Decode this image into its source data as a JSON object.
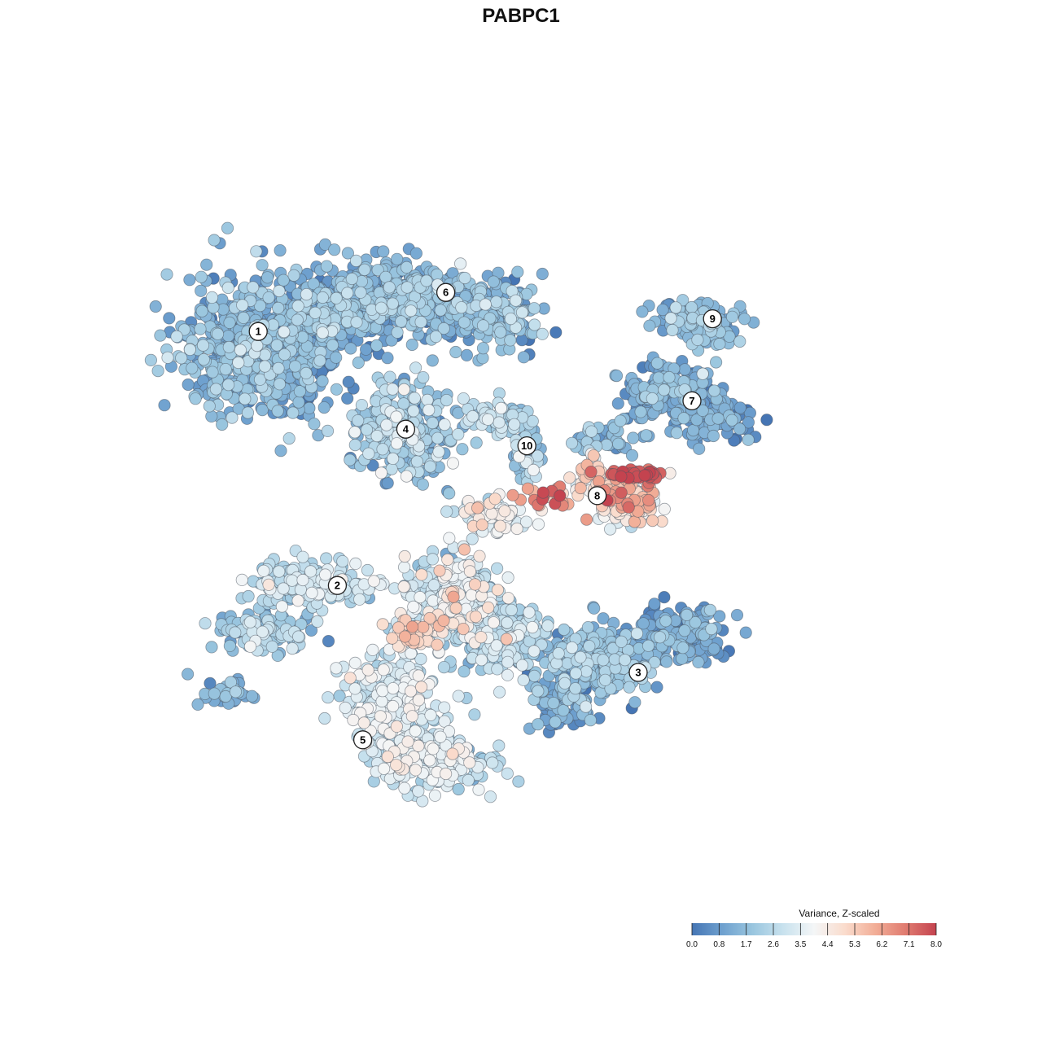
{
  "chart_data": {
    "type": "scatter",
    "title": "PABPC1",
    "xlabel": "",
    "ylabel": "",
    "grid": false,
    "axes_visible": false,
    "legend": {
      "title": "Variance, Z-scaled",
      "placement": "bottom-right",
      "ticks": [
        "0.0",
        "0.8",
        "1.7",
        "2.6",
        "3.5",
        "4.4",
        "5.3",
        "6.2",
        "7.1",
        "8.0"
      ],
      "range": [
        0,
        8
      ]
    },
    "color_scale": {
      "stops": [
        "#4575b4",
        "#6fa1cf",
        "#9ac6df",
        "#c9e2ee",
        "#f4f6f7",
        "#fadccd",
        "#f2ae97",
        "#e07b70",
        "#c4434f"
      ]
    },
    "xlim": [
      -40,
      40
    ],
    "ylim": [
      -40,
      40
    ],
    "clusters": [
      {
        "label": "1",
        "x": -26.9,
        "y": 19.4
      },
      {
        "label": "2",
        "x": -18.8,
        "y": -6.6
      },
      {
        "label": "3",
        "x": 12.0,
        "y": -15.5
      },
      {
        "label": "4",
        "x": -11.8,
        "y": 9.4
      },
      {
        "label": "5",
        "x": -16.2,
        "y": -22.4
      },
      {
        "label": "6",
        "x": -7.7,
        "y": 23.4
      },
      {
        "label": "7",
        "x": 17.5,
        "y": 12.3
      },
      {
        "label": "8",
        "x": 7.8,
        "y": 2.6
      },
      {
        "label": "9",
        "x": 19.6,
        "y": 20.7
      },
      {
        "label": "10",
        "x": 0.6,
        "y": 7.7
      }
    ],
    "regions": [
      {
        "cluster": "1",
        "cx": -26.5,
        "cy": 18.0,
        "sx": 6.5,
        "sy": 6.0,
        "n": 650,
        "value": 1.5,
        "value_sd": 0.7
      },
      {
        "cluster": "1",
        "cx": -19.0,
        "cy": 21.5,
        "sx": 5.0,
        "sy": 3.5,
        "n": 260,
        "value": 1.4,
        "value_sd": 0.7
      },
      {
        "cluster": "6",
        "cx": -11.5,
        "cy": 22.5,
        "sx": 7.0,
        "sy": 3.2,
        "n": 420,
        "value": 1.5,
        "value_sd": 0.7
      },
      {
        "cluster": "6",
        "cx": -2.5,
        "cy": 21.0,
        "sx": 3.5,
        "sy": 2.8,
        "n": 130,
        "value": 1.6,
        "value_sd": 0.8
      },
      {
        "cluster": "4",
        "cx": -12.0,
        "cy": 9.0,
        "sx": 3.8,
        "sy": 3.8,
        "n": 340,
        "value": 2.0,
        "value_sd": 0.8
      },
      {
        "cluster": "10",
        "cx": -2.5,
        "cy": 10.5,
        "sx": 3.0,
        "sy": 1.5,
        "n": 60,
        "value": 2.3,
        "value_sd": 0.8
      },
      {
        "cluster": "10",
        "cx": 0.5,
        "cy": 7.5,
        "sx": 1.3,
        "sy": 2.2,
        "n": 45,
        "value": 2.2,
        "value_sd": 0.8
      },
      {
        "cluster": "7",
        "cx": 15.0,
        "cy": 13.0,
        "sx": 4.0,
        "sy": 2.4,
        "n": 190,
        "value": 1.2,
        "value_sd": 0.6
      },
      {
        "cluster": "7",
        "cx": 20.0,
        "cy": 10.5,
        "sx": 3.5,
        "sy": 1.8,
        "n": 90,
        "value": 1.0,
        "value_sd": 0.5
      },
      {
        "cluster": "7",
        "cx": 8.5,
        "cy": 8.5,
        "sx": 3.0,
        "sy": 1.2,
        "n": 40,
        "value": 1.5,
        "value_sd": 0.6
      },
      {
        "cluster": "9",
        "cx": 18.5,
        "cy": 20.5,
        "sx": 3.5,
        "sy": 1.8,
        "n": 130,
        "value": 1.6,
        "value_sd": 0.6
      },
      {
        "cluster": "8",
        "cx": 10.5,
        "cy": 2.8,
        "sx": 3.0,
        "sy": 1.5,
        "n": 80,
        "value": 5.5,
        "value_sd": 1.0
      },
      {
        "cluster": "8",
        "cx": 7.0,
        "cy": 4.5,
        "sx": 1.2,
        "sy": 1.5,
        "n": 35,
        "value": 5.0,
        "value_sd": 0.9
      },
      {
        "cluster": "8",
        "cx": 11.0,
        "cy": 1.0,
        "sx": 2.3,
        "sy": 1.1,
        "n": 60,
        "value": 4.5,
        "value_sd": 0.8
      },
      {
        "cluster": "8",
        "cx": 12.0,
        "cy": 4.8,
        "sx": 2.4,
        "sy": 0.4,
        "n": 40,
        "value": 7.7,
        "value_sd": 0.3
      },
      {
        "cluster": "8",
        "cx": 2.5,
        "cy": 2.5,
        "sx": 2.0,
        "sy": 0.8,
        "n": 25,
        "value": 6.8,
        "value_sd": 0.7
      },
      {
        "cluster": "8",
        "cx": -3.0,
        "cy": 0.5,
        "sx": 3.0,
        "sy": 1.2,
        "n": 90,
        "value": 3.7,
        "value_sd": 0.7
      },
      {
        "cluster": "2",
        "cx": -22.0,
        "cy": -6.5,
        "sx": 4.8,
        "sy": 1.8,
        "n": 180,
        "value": 2.8,
        "value_sd": 0.7
      },
      {
        "cluster": "2",
        "cx": -26.5,
        "cy": -11.5,
        "sx": 3.5,
        "sy": 1.7,
        "n": 110,
        "value": 2.3,
        "value_sd": 0.8
      },
      {
        "cluster": "2",
        "cx": -29.5,
        "cy": -17.5,
        "sx": 2.5,
        "sy": 1.2,
        "n": 35,
        "value": 1.3,
        "value_sd": 0.6
      },
      {
        "cluster": "5",
        "cx": -7.0,
        "cy": -8.0,
        "sx": 4.0,
        "sy": 3.5,
        "n": 330,
        "value": 3.0,
        "value_sd": 1.0
      },
      {
        "cluster": "5",
        "cx": -1.5,
        "cy": -12.0,
        "sx": 3.5,
        "sy": 3.0,
        "n": 250,
        "value": 2.2,
        "value_sd": 0.8
      },
      {
        "cluster": "5",
        "cx": -13.5,
        "cy": -18.5,
        "sx": 4.0,
        "sy": 3.5,
        "n": 300,
        "value": 3.0,
        "value_sd": 0.7
      },
      {
        "cluster": "5",
        "cx": -9.5,
        "cy": -24.5,
        "sx": 5.0,
        "sy": 2.3,
        "n": 260,
        "value": 3.1,
        "value_sd": 0.7
      },
      {
        "cluster": "5",
        "cx": -11.0,
        "cy": -11.5,
        "sx": 2.0,
        "sy": 1.5,
        "n": 50,
        "value": 4.9,
        "value_sd": 0.4
      },
      {
        "cluster": "3",
        "cx": 8.0,
        "cy": -14.5,
        "sx": 4.5,
        "sy": 3.0,
        "n": 280,
        "value": 1.6,
        "value_sd": 0.7
      },
      {
        "cluster": "3",
        "cx": 16.5,
        "cy": -11.5,
        "sx": 3.5,
        "sy": 2.2,
        "n": 190,
        "value": 1.0,
        "value_sd": 0.5
      },
      {
        "cluster": "3",
        "cx": 4.5,
        "cy": -19.0,
        "sx": 2.5,
        "sy": 1.8,
        "n": 80,
        "value": 1.2,
        "value_sd": 0.6
      }
    ]
  }
}
